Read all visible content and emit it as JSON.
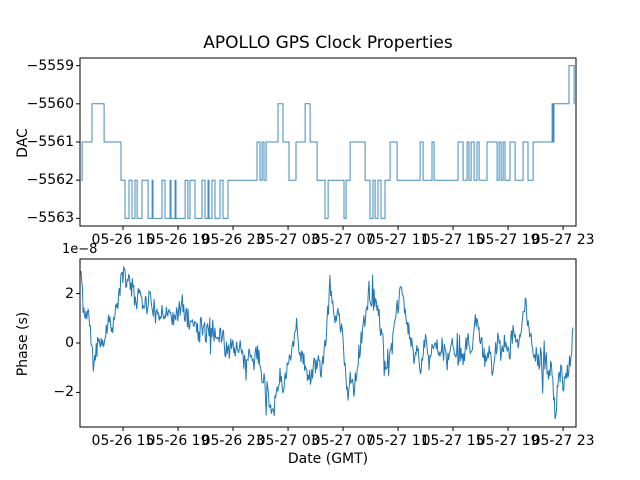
{
  "figure": {
    "title": "APOLLO GPS Clock Properties",
    "xlabel": "Date (GMT)",
    "background": "#ffffff",
    "line_color": "#1f77b4",
    "axis_color": "#000000"
  },
  "chart_data": [
    {
      "type": "line",
      "subtype": "step-post",
      "ylabel": "DAC",
      "x_units": "hours since 05-26 00:00 GMT",
      "xlim": [
        11.87,
        47.94
      ],
      "ylim": [
        -5563.2,
        -5558.8
      ],
      "grid": false,
      "legend": "none",
      "yticks": [
        {
          "v": -5559,
          "label": "−5559"
        },
        {
          "v": -5560,
          "label": "−5560"
        },
        {
          "v": -5561,
          "label": "−5561"
        },
        {
          "v": -5562,
          "label": "−5562"
        },
        {
          "v": -5563,
          "label": "−5563"
        }
      ],
      "xticks": [
        {
          "v": 15,
          "label": "05-26 15"
        },
        {
          "v": 19,
          "label": "05-26 19"
        },
        {
          "v": 23,
          "label": "05-26 23"
        },
        {
          "v": 27,
          "label": "05-27 03"
        },
        {
          "v": 31,
          "label": "05-27 07"
        },
        {
          "v": 35,
          "label": "05-27 11"
        },
        {
          "v": 39,
          "label": "05-27 15"
        },
        {
          "v": 43,
          "label": "05-27 19"
        },
        {
          "v": 47,
          "label": "05-27 23"
        }
      ],
      "end_t": 47.83,
      "steps": [
        [
          11.94,
          -5562
        ],
        [
          12.02,
          -5561
        ],
        [
          12.74,
          -5560
        ],
        [
          13.62,
          -5561
        ],
        [
          14.85,
          -5562
        ],
        [
          15.14,
          -5563
        ],
        [
          15.43,
          -5562
        ],
        [
          15.65,
          -5563
        ],
        [
          15.87,
          -5562
        ],
        [
          16.02,
          -5563
        ],
        [
          16.38,
          -5562
        ],
        [
          16.82,
          -5563
        ],
        [
          17.11,
          -5562
        ],
        [
          17.18,
          -5563
        ],
        [
          17.83,
          -5562
        ],
        [
          18.05,
          -5563
        ],
        [
          18.42,
          -5562
        ],
        [
          18.49,
          -5563
        ],
        [
          18.78,
          -5562
        ],
        [
          18.85,
          -5563
        ],
        [
          19.51,
          -5562
        ],
        [
          19.72,
          -5563
        ],
        [
          19.87,
          -5562
        ],
        [
          20.23,
          -5563
        ],
        [
          20.74,
          -5562
        ],
        [
          20.96,
          -5563
        ],
        [
          21.18,
          -5562
        ],
        [
          21.25,
          -5563
        ],
        [
          21.47,
          -5562
        ],
        [
          21.69,
          -5563
        ],
        [
          22.05,
          -5562
        ],
        [
          22.27,
          -5563
        ],
        [
          22.63,
          -5562
        ],
        [
          24.74,
          -5561
        ],
        [
          24.96,
          -5562
        ],
        [
          25.11,
          -5561
        ],
        [
          25.25,
          -5562
        ],
        [
          25.4,
          -5561
        ],
        [
          26.27,
          -5560
        ],
        [
          26.63,
          -5561
        ],
        [
          27.07,
          -5562
        ],
        [
          27.58,
          -5561
        ],
        [
          28.24,
          -5560
        ],
        [
          28.6,
          -5561
        ],
        [
          29.11,
          -5562
        ],
        [
          29.69,
          -5563
        ],
        [
          29.91,
          -5562
        ],
        [
          31.07,
          -5563
        ],
        [
          31.22,
          -5562
        ],
        [
          31.51,
          -5561
        ],
        [
          32.6,
          -5562
        ],
        [
          32.96,
          -5563
        ],
        [
          33.18,
          -5562
        ],
        [
          33.33,
          -5563
        ],
        [
          33.54,
          -5562
        ],
        [
          33.76,
          -5563
        ],
        [
          34.05,
          -5562
        ],
        [
          34.42,
          -5561
        ],
        [
          34.93,
          -5562
        ],
        [
          36.6,
          -5561
        ],
        [
          36.82,
          -5562
        ],
        [
          37.47,
          -5561
        ],
        [
          37.62,
          -5562
        ],
        [
          39.36,
          -5561
        ],
        [
          39.73,
          -5562
        ],
        [
          40.02,
          -5561
        ],
        [
          40.16,
          -5562
        ],
        [
          40.31,
          -5561
        ],
        [
          40.53,
          -5562
        ],
        [
          40.74,
          -5561
        ],
        [
          40.89,
          -5562
        ],
        [
          41.47,
          -5561
        ],
        [
          42.2,
          -5562
        ],
        [
          42.35,
          -5561
        ],
        [
          42.49,
          -5562
        ],
        [
          42.64,
          -5561
        ],
        [
          42.78,
          -5562
        ],
        [
          43.14,
          -5561
        ],
        [
          43.51,
          -5562
        ],
        [
          44.09,
          -5561
        ],
        [
          44.45,
          -5562
        ],
        [
          44.82,
          -5561
        ],
        [
          46.2,
          -5560
        ],
        [
          46.27,
          -5561
        ],
        [
          46.34,
          -5560
        ],
        [
          47.43,
          -5559
        ],
        [
          47.8,
          -5560
        ]
      ]
    },
    {
      "type": "line",
      "subtype": "noisy",
      "ylabel": "Phase (s)",
      "offset_text": "1e−8",
      "x_units": "hours since 05-26 00:00 GMT",
      "y_units": "1e-8 s",
      "xlim": [
        11.87,
        47.94
      ],
      "ylim": [
        -3.4,
        3.4
      ],
      "grid": false,
      "legend": "none",
      "yticks": [
        {
          "v": 2,
          "label": "2"
        },
        {
          "v": 0,
          "label": "0"
        },
        {
          "v": -2,
          "label": "−2"
        }
      ],
      "xticks": [
        {
          "v": 15,
          "label": "05-26 15"
        },
        {
          "v": 19,
          "label": "05-26 19"
        },
        {
          "v": 23,
          "label": "05-26 23"
        },
        {
          "v": 27,
          "label": "05-27 03"
        },
        {
          "v": 31,
          "label": "05-27 07"
        },
        {
          "v": 35,
          "label": "05-27 11"
        },
        {
          "v": 39,
          "label": "05-27 15"
        },
        {
          "v": 43,
          "label": "05-27 19"
        },
        {
          "v": 47,
          "label": "05-27 23"
        }
      ],
      "noise": {
        "amplitude": 0.42,
        "spike_amplitude": 0.85,
        "spike_prob": 0.07,
        "samples": 680,
        "seed": 11
      },
      "keypoints": [
        [
          11.94,
          2.9
        ],
        [
          12.09,
          1.6
        ],
        [
          12.23,
          1.0
        ],
        [
          12.45,
          1.4
        ],
        [
          12.6,
          0.6
        ],
        [
          12.82,
          -0.9
        ],
        [
          13.03,
          -0.3
        ],
        [
          13.32,
          0.3
        ],
        [
          13.54,
          -0.2
        ],
        [
          13.76,
          0.6
        ],
        [
          14.05,
          1.0
        ],
        [
          14.27,
          0.7
        ],
        [
          14.49,
          1.3
        ],
        [
          14.78,
          2.2
        ],
        [
          15.07,
          3.0
        ],
        [
          15.29,
          2.3
        ],
        [
          15.51,
          2.6
        ],
        [
          15.72,
          2.1
        ],
        [
          15.94,
          1.7
        ],
        [
          16.23,
          2.3
        ],
        [
          16.45,
          1.8
        ],
        [
          16.74,
          1.5
        ],
        [
          16.96,
          1.9
        ],
        [
          17.25,
          1.4
        ],
        [
          17.54,
          0.8
        ],
        [
          17.83,
          1.5
        ],
        [
          18.12,
          1.1
        ],
        [
          18.42,
          1.4
        ],
        [
          18.71,
          0.9
        ],
        [
          19.0,
          1.2
        ],
        [
          19.29,
          1.6
        ],
        [
          19.58,
          1.1
        ],
        [
          19.87,
          0.7
        ],
        [
          20.16,
          1.0
        ],
        [
          20.45,
          0.4
        ],
        [
          20.74,
          0.8
        ],
        [
          21.03,
          0.3
        ],
        [
          21.32,
          0.8
        ],
        [
          21.62,
          0.5
        ],
        [
          21.91,
          0.0
        ],
        [
          22.2,
          0.4
        ],
        [
          22.49,
          -0.3
        ],
        [
          22.78,
          0.2
        ],
        [
          23.07,
          -0.4
        ],
        [
          23.36,
          0.1
        ],
        [
          23.65,
          -0.6
        ],
        [
          23.94,
          -1.1
        ],
        [
          24.23,
          -0.4
        ],
        [
          24.52,
          -0.8
        ],
        [
          24.81,
          -0.3
        ],
        [
          25.11,
          -1.3
        ],
        [
          25.4,
          -1.8
        ],
        [
          25.69,
          -2.3
        ],
        [
          25.91,
          -2.9
        ],
        [
          26.12,
          -2.0
        ],
        [
          26.41,
          -1.4
        ],
        [
          26.7,
          -1.7
        ],
        [
          27.0,
          -0.9
        ],
        [
          27.29,
          -0.2
        ],
        [
          27.51,
          0.6
        ],
        [
          27.72,
          0.1
        ],
        [
          28.01,
          -0.6
        ],
        [
          28.31,
          -1.0
        ],
        [
          28.6,
          -1.5
        ],
        [
          28.89,
          -1.0
        ],
        [
          29.18,
          -0.6
        ],
        [
          29.47,
          -1.2
        ],
        [
          29.76,
          0.2
        ],
        [
          30.05,
          2.4
        ],
        [
          30.27,
          1.5
        ],
        [
          30.49,
          0.9
        ],
        [
          30.71,
          1.4
        ],
        [
          30.92,
          0.3
        ],
        [
          31.14,
          -0.8
        ],
        [
          31.36,
          -2.2
        ],
        [
          31.58,
          -1.2
        ],
        [
          31.8,
          -1.8
        ],
        [
          32.01,
          -0.9
        ],
        [
          32.23,
          -0.2
        ],
        [
          32.45,
          0.5
        ],
        [
          32.67,
          1.2
        ],
        [
          32.89,
          2.2
        ],
        [
          33.11,
          1.6
        ],
        [
          33.33,
          1.9
        ],
        [
          33.54,
          1.2
        ],
        [
          33.76,
          0.6
        ],
        [
          33.98,
          -0.3
        ],
        [
          34.2,
          -1.4
        ],
        [
          34.42,
          -0.7
        ],
        [
          34.64,
          0.2
        ],
        [
          34.85,
          1.0
        ],
        [
          35.07,
          1.8
        ],
        [
          35.29,
          2.1
        ],
        [
          35.51,
          1.3
        ],
        [
          35.73,
          0.6
        ],
        [
          35.95,
          0.0
        ],
        [
          36.16,
          -0.6
        ],
        [
          36.38,
          -0.2
        ],
        [
          36.6,
          -1.0
        ],
        [
          36.82,
          -0.4
        ],
        [
          37.04,
          0.1
        ],
        [
          37.25,
          -0.7
        ],
        [
          37.47,
          -0.3
        ],
        [
          37.69,
          0.4
        ],
        [
          37.91,
          -0.2
        ],
        [
          38.13,
          -0.8
        ],
        [
          38.35,
          -0.4
        ],
        [
          38.56,
          -0.9
        ],
        [
          38.78,
          -0.5
        ],
        [
          39.0,
          0.0
        ],
        [
          39.22,
          -0.6
        ],
        [
          39.44,
          -0.2
        ],
        [
          39.65,
          -0.7
        ],
        [
          39.87,
          -0.4
        ],
        [
          40.09,
          0.3
        ],
        [
          40.31,
          -0.3
        ],
        [
          40.53,
          0.5
        ],
        [
          40.74,
          1.1
        ],
        [
          40.96,
          0.4
        ],
        [
          41.18,
          -0.2
        ],
        [
          41.4,
          -0.8
        ],
        [
          41.62,
          -0.4
        ],
        [
          41.83,
          -1.0
        ],
        [
          42.05,
          -0.5
        ],
        [
          42.27,
          0.2
        ],
        [
          42.49,
          -0.4
        ],
        [
          42.71,
          0.0
        ],
        [
          42.93,
          -0.6
        ],
        [
          43.14,
          -0.2
        ],
        [
          43.36,
          0.4
        ],
        [
          43.58,
          -0.1
        ],
        [
          43.8,
          0.3
        ],
        [
          44.02,
          1.0
        ],
        [
          44.24,
          1.7
        ],
        [
          44.45,
          0.8
        ],
        [
          44.67,
          0.2
        ],
        [
          44.89,
          -0.4
        ],
        [
          45.11,
          -1.0
        ],
        [
          45.33,
          -0.5
        ],
        [
          45.54,
          -1.2
        ],
        [
          45.76,
          -0.7
        ],
        [
          45.98,
          -1.4
        ],
        [
          46.2,
          -0.9
        ],
        [
          46.42,
          -3.0
        ],
        [
          46.64,
          -1.6
        ],
        [
          46.85,
          -1.1
        ],
        [
          47.07,
          -1.8
        ],
        [
          47.29,
          -1.3
        ],
        [
          47.51,
          -0.8
        ],
        [
          47.73,
          0.5
        ]
      ]
    }
  ]
}
